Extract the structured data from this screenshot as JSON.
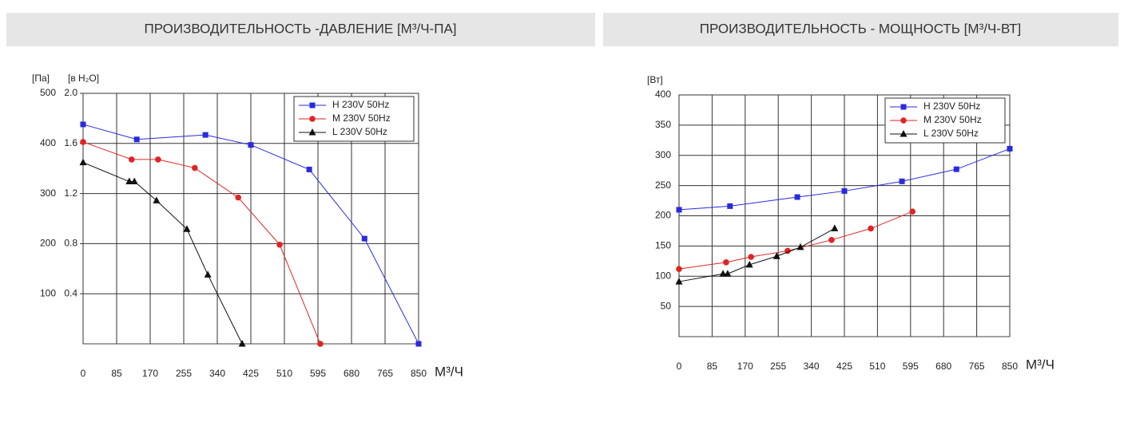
{
  "chart_data": [
    {
      "type": "line",
      "title": "ПРОИЗВОДИТЕЛЬНОСТЬ -ДАВЛЕНИЕ  [М³/Ч-ПА]",
      "y_label": "[Па]",
      "y2_label": "[в H₂O]",
      "x_label": "М³/Ч",
      "xlim": [
        0,
        850
      ],
      "xticks": [
        0,
        85,
        170,
        255,
        340,
        425,
        510,
        595,
        680,
        765,
        850
      ],
      "ylim": [
        0,
        500
      ],
      "yticks": [
        100,
        200,
        300,
        400,
        500
      ],
      "y2lim": [
        0,
        2.0
      ],
      "y2ticks": [
        0.4,
        0.8,
        1.2,
        1.6,
        {
          "value": 2.0,
          "label": "2.0"
        }
      ],
      "grid": true,
      "legend": "upper right",
      "series": [
        {
          "name": "H 230V 50Hz",
          "color": "#2a2ae0",
          "marker": "square",
          "x": [
            0,
            136,
            310,
            425,
            573,
            713,
            850
          ],
          "values": [
            438,
            408,
            417,
            397,
            348,
            210,
            0
          ]
        },
        {
          "name": "M 230V 50Hz",
          "color": "#e02424",
          "marker": "circle",
          "x": [
            0,
            123,
            190,
            283,
            393,
            498,
            601
          ],
          "values": [
            403,
            368,
            368,
            351,
            292,
            198,
            0
          ]
        },
        {
          "name": "L 230V 50Hz",
          "color": "#111111",
          "marker": "triangle",
          "x": [
            0,
            117,
            130,
            186,
            263,
            316,
            403
          ],
          "values": [
            362,
            324,
            324,
            286,
            229,
            138,
            0
          ]
        }
      ]
    },
    {
      "type": "line",
      "title": "ПРОИЗВОДИТЕЛЬНОСТЬ - МОЩНОСТЬ [М³/Ч-ВТ]",
      "y_label": "[Вт]",
      "x_label": "М³/Ч",
      "xlim": [
        0,
        850
      ],
      "xticks": [
        0,
        85,
        170,
        255,
        340,
        425,
        510,
        595,
        680,
        765,
        850
      ],
      "ylim": [
        0,
        400
      ],
      "yticks": [
        50,
        100,
        150,
        200,
        250,
        300,
        350,
        400
      ],
      "grid": true,
      "legend": "upper right",
      "series": [
        {
          "name": "H 230V 50Hz",
          "color": "#2a2ae0",
          "marker": "square",
          "x": [
            0,
            131,
            304,
            425,
            573,
            713,
            850
          ],
          "values": [
            210,
            216,
            231,
            241,
            257,
            277,
            311
          ]
        },
        {
          "name": "M 230V 50Hz",
          "color": "#e02424",
          "marker": "circle",
          "x": [
            0,
            121,
            185,
            279,
            392,
            493,
            600
          ],
          "values": [
            112,
            123,
            132,
            142,
            160,
            179,
            207
          ]
        },
        {
          "name": "L 230V 50Hz",
          "color": "#111111",
          "marker": "triangle",
          "x": [
            0,
            113,
            125,
            181,
            251,
            312,
            400
          ],
          "values": [
            91,
            104,
            104,
            119,
            133,
            148,
            179
          ]
        }
      ]
    }
  ]
}
